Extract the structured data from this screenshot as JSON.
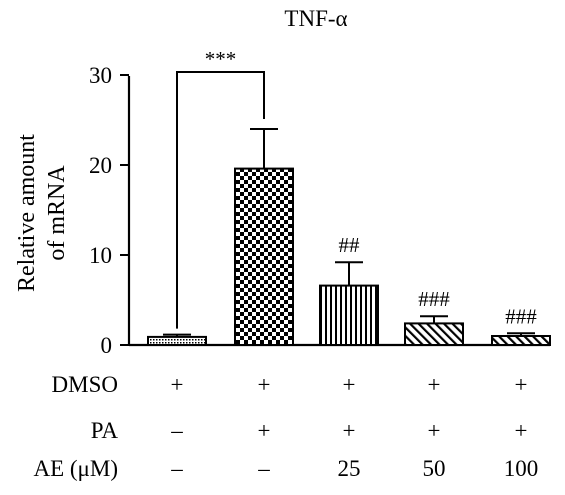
{
  "chart_data": {
    "type": "bar",
    "title": "TNF-α",
    "ylabel": [
      "Relative amount",
      "of mRNA"
    ],
    "ylim": [
      0,
      30
    ],
    "yticks": [
      0,
      10,
      20,
      30
    ],
    "grid": false,
    "groups": [
      {
        "value": 0.9,
        "error": 0.25,
        "pattern": "dense-dots",
        "annotation": ""
      },
      {
        "value": 19.6,
        "error": 4.4,
        "pattern": "checker",
        "annotation": ""
      },
      {
        "value": 6.6,
        "error": 2.6,
        "pattern": "vertical-lines",
        "annotation": "##"
      },
      {
        "value": 2.4,
        "error": 0.8,
        "pattern": "diagonal-lines",
        "annotation": "###"
      },
      {
        "value": 1.0,
        "error": 0.3,
        "pattern": "diagonal-lines",
        "annotation": "###"
      }
    ],
    "comparison": {
      "from": 0,
      "to": 1,
      "label": "***"
    },
    "conditions": [
      {
        "name": "DMSO",
        "values": [
          "+",
          "+",
          "+",
          "+",
          "+"
        ]
      },
      {
        "name": "PA",
        "values": [
          "–",
          "+",
          "+",
          "+",
          "+"
        ]
      },
      {
        "name": "AE (μM)",
        "values": [
          "–",
          "–",
          "25",
          "50",
          "100"
        ]
      }
    ]
  }
}
